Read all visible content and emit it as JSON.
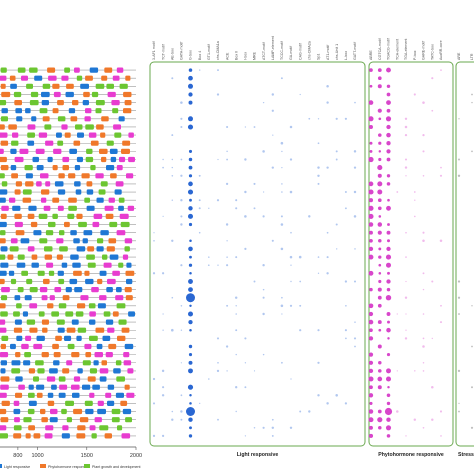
{
  "chart_data": [
    {
      "type": "scatter",
      "chart_kind": "promoter element position map",
      "title": "",
      "xlabel": "",
      "ylabel": "",
      "x_ticks": [
        "800",
        "1000",
        "1500",
        "2000"
      ],
      "x_tick_values": [
        800,
        1000,
        1500,
        2000
      ],
      "xlim": [
        720,
        2000
      ],
      "rows": 46,
      "legend_placement": "bottom",
      "legend": [
        {
          "label": "Light responsive",
          "color": "#1f77d4"
        },
        {
          "label": "Phytohormone responsive",
          "color": "#f0782a"
        },
        {
          "label": "Plant growth and development",
          "color": "#6cc631"
        }
      ],
      "series": [
        {
          "name": "Light responsive",
          "color": "#1f77d4"
        },
        {
          "name": "Phytohormone responsive",
          "color": "#f0782a"
        },
        {
          "name": "Plant growth and development",
          "color": "#6cc631"
        },
        {
          "name": "",
          "color": "#e83cd0"
        }
      ]
    },
    {
      "type": "heatmap",
      "chart_kind": "bubble matrix of cis-element counts",
      "groups": [
        {
          "label": "Light responsive",
          "color": "#1f5fd0",
          "columns": [
            "3-AF1 motif",
            "TCT-motif",
            "AE-box",
            "GATA-motif",
            "G-box",
            "Box 4",
            "GT1-motif",
            "chs-CMA1a",
            "ACE",
            "Box II",
            "I-box",
            "MRE",
            "ATCT-motif",
            "LAMP-element",
            "TCCC-motif",
            "GA-motif",
            "CAG-motif",
            "chs-CMA2a",
            "Sp1",
            "AT1-motif",
            "chs-Unit 1",
            "L-box",
            "GATT-motif"
          ]
        },
        {
          "label": "Phytohormone responsive",
          "color": "#d63cc8",
          "columns": [
            "ABRE",
            "CGTCA-motif",
            "TGACG-motif",
            "TCA-element",
            "TGA-element",
            "P-box",
            "GARE-motif",
            "TATC-box",
            "AuxRR-core"
          ]
        },
        {
          "label": "Stress responsive",
          "color": "#444444",
          "columns": [
            "ARE",
            "LTR"
          ]
        }
      ],
      "rows": 46,
      "hot_columns": [
        {
          "group": 0,
          "column": 4
        },
        {
          "group": 1,
          "column": 1
        },
        {
          "group": 1,
          "column": 2
        },
        {
          "group": 1,
          "column": 0
        }
      ],
      "large_cells": [
        {
          "group": 0,
          "column": 4,
          "row": 28,
          "value": 5
        },
        {
          "group": 0,
          "column": 4,
          "row": 42,
          "value": 5
        },
        {
          "group": 1,
          "column": 2,
          "row": 42,
          "value": 4
        },
        {
          "group": 1,
          "column": 2,
          "row": 28,
          "value": 3
        }
      ]
    }
  ]
}
